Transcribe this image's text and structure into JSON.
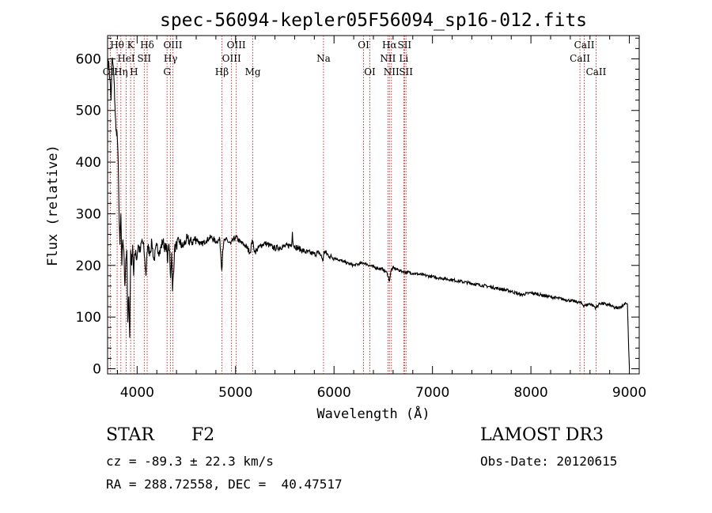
{
  "chart_data": {
    "type": "line",
    "title": "spec-56094-kepler05F56094_sp16-012.fits",
    "xlabel": "Wavelength (Å)",
    "ylabel": "Flux (relative)",
    "xlim": [
      3700,
      9100
    ],
    "ylim": [
      -10,
      645
    ],
    "xticks": [
      4000,
      5000,
      6000,
      7000,
      8000,
      9000
    ],
    "yticks": [
      0,
      100,
      200,
      300,
      400,
      500,
      600
    ],
    "series": [
      {
        "name": "flux",
        "x": [
          3705,
          3715,
          3725,
          3735,
          3745,
          3755,
          3765,
          3775,
          3785,
          3795,
          3805,
          3815,
          3825,
          3835,
          3845,
          3855,
          3865,
          3875,
          3885,
          3895,
          3905,
          3915,
          3925,
          3935,
          3945,
          3955,
          3965,
          3975,
          3985,
          3995,
          4010,
          4030,
          4050,
          4070,
          4090,
          4100,
          4110,
          4130,
          4150,
          4170,
          4200,
          4230,
          4260,
          4290,
          4300,
          4310,
          4320,
          4330,
          4340,
          4350,
          4360,
          4380,
          4400,
          4430,
          4460,
          4500,
          4550,
          4600,
          4650,
          4700,
          4750,
          4800,
          4840,
          4860,
          4870,
          4880,
          4900,
          4950,
          5000,
          5050,
          5100,
          5150,
          5170,
          5185,
          5200,
          5250,
          5300,
          5400,
          5500,
          5570,
          5577,
          5585,
          5600,
          5700,
          5800,
          5850,
          5890,
          5900,
          5950,
          6000,
          6100,
          6200,
          6300,
          6400,
          6500,
          6540,
          6563,
          6580,
          6600,
          6700,
          6800,
          7000,
          7200,
          7400,
          7600,
          7800,
          7900,
          8000,
          8200,
          8400,
          8500,
          8542,
          8600,
          8662,
          8700,
          8800,
          8850,
          8880,
          8940,
          8960,
          8980,
          8990,
          9000
        ],
        "y": [
          600,
          580,
          560,
          520,
          600,
          590,
          560,
          510,
          460,
          460,
          420,
          320,
          240,
          300,
          200,
          250,
          230,
          160,
          210,
          230,
          90,
          140,
          60,
          230,
          200,
          240,
          180,
          220,
          230,
          210,
          240,
          225,
          250,
          230,
          180,
          225,
          235,
          225,
          245,
          210,
          238,
          225,
          248,
          230,
          240,
          205,
          240,
          230,
          175,
          225,
          150,
          230,
          240,
          247,
          235,
          250,
          245,
          252,
          240,
          248,
          255,
          246,
          250,
          190,
          230,
          245,
          250,
          242,
          255,
          245,
          238,
          225,
          250,
          233,
          226,
          238,
          243,
          233,
          237,
          240,
          265,
          240,
          237,
          227,
          222,
          225,
          210,
          228,
          218,
          215,
          207,
          200,
          205,
          197,
          192,
          185,
          170,
          191,
          195,
          188,
          185,
          178,
          172,
          165,
          158,
          150,
          143,
          147,
          139,
          132,
          128,
          122,
          126,
          118,
          127,
          123,
          118,
          117,
          123,
          128,
          125,
          60,
          0
        ]
      }
    ],
    "lines": [
      {
        "label": "Hθ",
        "x": 3797,
        "row": 1
      },
      {
        "label": "OII",
        "x": 3727,
        "row": 3
      },
      {
        "label": "Hη",
        "x": 3835,
        "row": 3
      },
      {
        "label": "HeI",
        "x": 3889,
        "row": 2
      },
      {
        "label": "K",
        "x": 3934,
        "row": 1
      },
      {
        "label": "H",
        "x": 3968,
        "row": 3
      },
      {
        "label": "SII",
        "x": 4072,
        "row": 2
      },
      {
        "label": "Hδ",
        "x": 4102,
        "row": 1
      },
      {
        "label": "G",
        "x": 4304,
        "row": 3
      },
      {
        "label": "Hγ",
        "x": 4340,
        "row": 2
      },
      {
        "label": "OIII",
        "x": 4363,
        "row": 1
      },
      {
        "label": "Hβ",
        "x": 4861,
        "row": 3
      },
      {
        "label": "OIII",
        "x": 4959,
        "row": 2
      },
      {
        "label": "OIII",
        "x": 5007,
        "row": 1
      },
      {
        "label": "Mg",
        "x": 5175,
        "row": 3
      },
      {
        "label": "Na",
        "x": 5893,
        "row": 2
      },
      {
        "label": "OI",
        "x": 6300,
        "row": 1
      },
      {
        "label": "OI",
        "x": 6364,
        "row": 3
      },
      {
        "label": "NII",
        "x": 6548,
        "row": 2
      },
      {
        "label": "Hα",
        "x": 6563,
        "row": 1
      },
      {
        "label": "NII",
        "x": 6583,
        "row": 3
      },
      {
        "label": "Li",
        "x": 6708,
        "row": 2
      },
      {
        "label": "SII",
        "x": 6716,
        "row": 1
      },
      {
        "label": "SII",
        "x": 6731,
        "row": 3
      },
      {
        "label": "CaII",
        "x": 8498,
        "row": 2
      },
      {
        "label": "CaII",
        "x": 8542,
        "row": 1
      },
      {
        "label": "CaII",
        "x": 8662,
        "row": 3
      }
    ]
  },
  "footer": {
    "object_class": "STAR",
    "subclass": "F2",
    "survey": "LAMOST DR3",
    "cz": "cz = -89.3 ± 22.3 km/s",
    "obs_date": "Obs-Date: 20120615",
    "coords": "RA = 288.72558, DEC =  40.47517"
  },
  "colors": {
    "line_marker": "#cc0000",
    "spectrum": "#000000"
  }
}
